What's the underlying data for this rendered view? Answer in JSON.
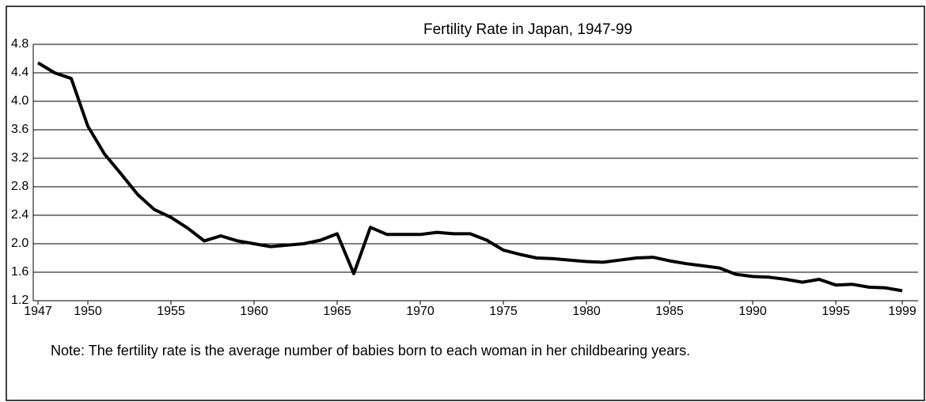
{
  "chart_data": {
    "type": "line",
    "title": "Fertility Rate in Japan, 1947-99",
    "note": "Note:  The fertility rate is the average number of babies born to each woman in her childbearing years.",
    "x": [
      1947,
      1948,
      1949,
      1950,
      1951,
      1952,
      1953,
      1954,
      1955,
      1956,
      1957,
      1958,
      1959,
      1960,
      1961,
      1962,
      1963,
      1964,
      1965,
      1966,
      1967,
      1968,
      1969,
      1970,
      1971,
      1972,
      1973,
      1974,
      1975,
      1976,
      1977,
      1978,
      1979,
      1980,
      1981,
      1982,
      1983,
      1984,
      1985,
      1986,
      1987,
      1988,
      1989,
      1990,
      1991,
      1992,
      1993,
      1994,
      1995,
      1996,
      1997,
      1998,
      1999
    ],
    "values": [
      4.54,
      4.4,
      4.32,
      3.65,
      3.26,
      2.98,
      2.69,
      2.48,
      2.37,
      2.22,
      2.04,
      2.11,
      2.04,
      2.0,
      1.96,
      1.98,
      2.0,
      2.05,
      2.14,
      1.58,
      2.23,
      2.13,
      2.13,
      2.13,
      2.16,
      2.14,
      2.14,
      2.05,
      1.91,
      1.85,
      1.8,
      1.79,
      1.77,
      1.75,
      1.74,
      1.77,
      1.8,
      1.81,
      1.76,
      1.72,
      1.69,
      1.66,
      1.57,
      1.54,
      1.53,
      1.5,
      1.46,
      1.5,
      1.42,
      1.43,
      1.39,
      1.38,
      1.34
    ],
    "color": "#000000",
    "xlim": [
      1947,
      1999
    ],
    "xticks": [
      1947,
      1950,
      1955,
      1960,
      1965,
      1970,
      1975,
      1980,
      1985,
      1990,
      1995,
      1999
    ],
    "ylim": [
      1.2,
      4.8
    ],
    "yticks": [
      1.2,
      1.6,
      {
        "value": 2,
        "label": "2.0"
      },
      2.4,
      2.8,
      3.2,
      3.6,
      {
        "value": 4,
        "label": "4.0"
      },
      4.4,
      4.8
    ],
    "grid": true
  }
}
